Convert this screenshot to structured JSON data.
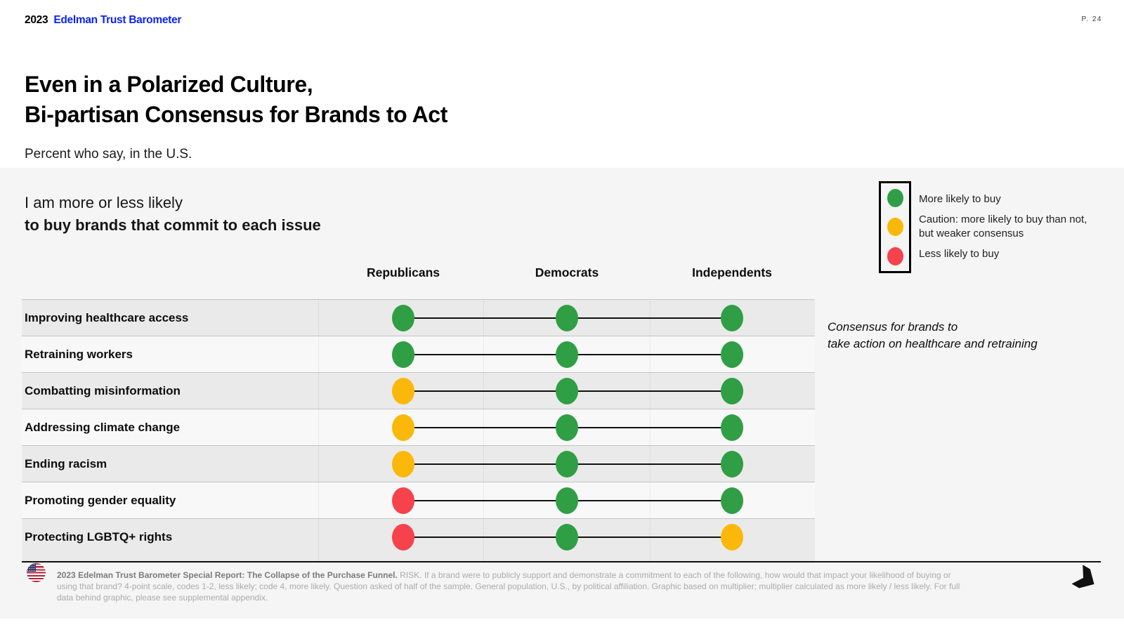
{
  "header": {
    "logo_year": "2023",
    "logo_brand": "Edelman Trust Barometer",
    "page_number": "P. 24"
  },
  "colors": {
    "brand_blue": "#0D24F5",
    "more_likely_green": "#2F9E44",
    "caution_yellow": "#FBB80B",
    "less_likely_red": "#F5424C"
  },
  "title": {
    "line1": "Even in a Polarized Culture,",
    "line2": "Bi-partisan Consensus for Brands to Act"
  },
  "subtitle": "Percent who say, in the U.S.",
  "panel": {
    "heading_line1": "I am more or less likely",
    "heading_line2": "to buy brands that commit to each issue"
  },
  "legend": {
    "items": [
      {
        "key": "more",
        "color": "#2F9E44",
        "label": "More likely to buy"
      },
      {
        "key": "caution",
        "color": "#FBB80B",
        "label": "Caution: more likely to buy than not, but weaker consensus"
      },
      {
        "key": "less",
        "color": "#F5424C",
        "label": "Less likely to buy"
      }
    ]
  },
  "annotation": {
    "line1": "Consensus for brands to",
    "line2": "take action on healthcare and retraining"
  },
  "chart_data": {
    "type": "table",
    "columns": [
      "Republicans",
      "Democrats",
      "Independents"
    ],
    "legend_colors": {
      "more": "#2F9E44",
      "caution": "#FBB80B",
      "less": "#F5424C"
    },
    "legend_meaning": {
      "more": "More likely to buy",
      "caution": "Caution: more likely to buy than not, but weaker consensus",
      "less": "Less likely to buy"
    },
    "rows": [
      {
        "label": "Improving healthcare access",
        "values": [
          "more",
          "more",
          "more"
        ]
      },
      {
        "label": "Retraining workers",
        "values": [
          "more",
          "more",
          "more"
        ]
      },
      {
        "label": "Combatting misinformation",
        "values": [
          "caution",
          "more",
          "more"
        ]
      },
      {
        "label": "Addressing climate change",
        "values": [
          "caution",
          "more",
          "more"
        ]
      },
      {
        "label": "Ending racism",
        "values": [
          "caution",
          "more",
          "more"
        ]
      },
      {
        "label": "Promoting gender equality",
        "values": [
          "less",
          "more",
          "more"
        ]
      },
      {
        "label": "Protecting LGBTQ+ rights",
        "values": [
          "less",
          "more",
          "caution"
        ]
      }
    ]
  },
  "footer": {
    "source_bold": "2023 Edelman Trust Barometer Special Report: The Collapse of the Purchase Funnel.",
    "source_text": "RISK. If a brand were to publicly support and demonstrate a commitment to each of the following, how would that impact your likelihood of buying or using that brand? 4-point scale, codes 1-2, less likely; code 4, more likely. Question asked of half of the sample. General population, U.S., by political affiliation. Graphic based on multiplier; multiplier calculated as more likely / less likely. For full data behind graphic, please see supplemental appendix."
  }
}
